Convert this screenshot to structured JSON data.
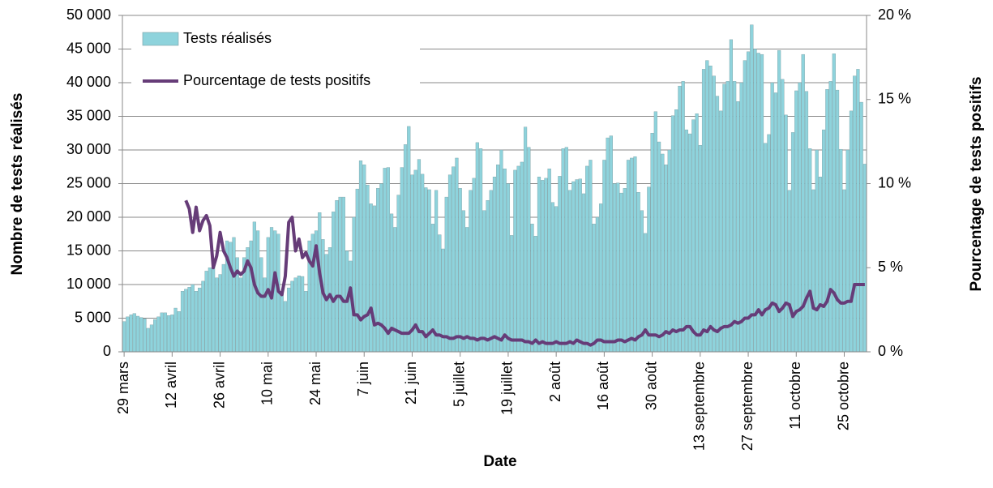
{
  "chart_data": {
    "type": "bar",
    "xlabel": "Date",
    "ylabel": "Nombre de tests réalisés",
    "y2label": "Pourcentage de tests positifs",
    "categories": [
      "29 mars",
      null,
      null,
      null,
      null,
      null,
      null,
      null,
      null,
      null,
      null,
      null,
      null,
      null,
      "12 avril",
      null,
      null,
      null,
      null,
      null,
      null,
      null,
      null,
      null,
      null,
      null,
      null,
      null,
      "26 avril",
      null,
      null,
      null,
      null,
      null,
      null,
      null,
      null,
      null,
      null,
      null,
      null,
      null,
      "10 mai",
      null,
      null,
      null,
      null,
      null,
      null,
      null,
      null,
      null,
      null,
      null,
      null,
      null,
      "24 mai",
      null,
      null,
      null,
      null,
      null,
      null,
      null,
      null,
      null,
      null,
      null,
      null,
      null,
      "7 juin",
      null,
      null,
      null,
      null,
      null,
      null,
      null,
      null,
      null,
      null,
      null,
      null,
      null,
      "21 juin",
      null,
      null,
      null,
      null,
      null,
      null,
      null,
      null,
      null,
      null,
      null,
      null,
      null,
      "5 juillet",
      null,
      null,
      null,
      null,
      null,
      null,
      null,
      null,
      null,
      null,
      null,
      null,
      null,
      "19 juillet",
      null,
      null,
      null,
      null,
      null,
      null,
      null,
      null,
      null,
      null,
      null,
      null,
      null,
      "2 août",
      null,
      null,
      null,
      null,
      null,
      null,
      null,
      null,
      null,
      null,
      null,
      null,
      null,
      "16 août",
      null,
      null,
      null,
      null,
      null,
      null,
      null,
      null,
      null,
      null,
      null,
      null,
      null,
      "30 août",
      null,
      null,
      null,
      null,
      null,
      null,
      null,
      null,
      null,
      null,
      null,
      null,
      null,
      "13 septembre",
      null,
      null,
      null,
      null,
      null,
      null,
      null,
      null,
      null,
      null,
      null,
      null,
      null,
      "27 septembre",
      null,
      null,
      null,
      null,
      null,
      null,
      null,
      null,
      null,
      null,
      null,
      null,
      null,
      "11 octobre",
      null,
      null,
      null,
      null,
      null,
      null,
      null,
      null,
      null,
      null,
      null,
      null,
      null,
      "25 octobre",
      null,
      null,
      null,
      null,
      null,
      null
    ],
    "series": [
      {
        "name": "Tests réalisés",
        "type": "bar",
        "color": "#8ed3dc",
        "values": [
          4500,
          5200,
          5500,
          5700,
          5300,
          5100,
          4900,
          3500,
          4000,
          4800,
          5200,
          5800,
          5800,
          5400,
          5500,
          6500,
          6000,
          9000,
          9300,
          9600,
          10000,
          9000,
          9500,
          10500,
          12000,
          12500,
          12700,
          11000,
          11500,
          13000,
          16500,
          16300,
          17000,
          14000,
          11000,
          14000,
          15500,
          16500,
          19300,
          18000,
          14000,
          11000,
          17000,
          18500,
          18000,
          17500,
          9000,
          7500,
          9500,
          10500,
          11000,
          11300,
          11200,
          9000,
          16500,
          17500,
          18000,
          20700,
          16700,
          14500,
          15500,
          20800,
          22500,
          23000,
          23000,
          15000,
          13500,
          20000,
          24200,
          28400,
          27800,
          24800,
          22000,
          21700,
          24300,
          25000,
          27300,
          27400,
          20500,
          18500,
          23300,
          27400,
          30800,
          33500,
          26300,
          27000,
          28600,
          26400,
          24400,
          24100,
          19000,
          24000,
          17400,
          15300,
          23000,
          26300,
          27500,
          28800,
          24300,
          21000,
          18500,
          24000,
          25800,
          31100,
          30200,
          21000,
          22500,
          24000,
          26000,
          27800,
          30000,
          27200,
          25000,
          17300,
          27000,
          27600,
          28200,
          33400,
          30400,
          19000,
          17200,
          26000,
          25500,
          25800,
          27200,
          22200,
          21600,
          26100,
          30200,
          30400,
          24000,
          25300,
          25600,
          25700,
          23500,
          27600,
          28500,
          19000,
          20000,
          22000,
          28500,
          31800,
          32100,
          25000,
          25100,
          23600,
          24300,
          28500,
          28800,
          29000,
          23700,
          21000,
          17600,
          24500,
          32500,
          35700,
          31200,
          29400,
          27800,
          30000,
          35100,
          36000,
          39500,
          40200,
          33000,
          32400,
          34500,
          35400,
          30700,
          42000,
          43300,
          42500,
          41000,
          38000,
          35800,
          39800,
          40200,
          46400,
          40200,
          37200,
          40000,
          43300,
          44600,
          48600,
          45000,
          44400,
          44200,
          31000,
          32300,
          40000,
          38500,
          44800,
          40500,
          35200,
          24000,
          32600,
          38800,
          40000,
          44200,
          38700,
          30200,
          24100,
          30000,
          26000,
          33000,
          39000,
          40200,
          44300,
          38900,
          30100,
          24100,
          30000,
          35800,
          41000,
          42000,
          37100,
          27900
        ]
      },
      {
        "name": "Pourcentage de tests positifs",
        "type": "line",
        "axis": "y2",
        "color": "#663c78",
        "values": [
          null,
          null,
          null,
          null,
          null,
          null,
          null,
          null,
          null,
          null,
          null,
          null,
          null,
          null,
          null,
          null,
          null,
          null,
          9.0,
          8.5,
          7.1,
          8.6,
          7.2,
          7.8,
          8.1,
          7.5,
          5.0,
          5.7,
          7.1,
          6.0,
          5.6,
          5.0,
          4.5,
          4.8,
          4.6,
          4.8,
          5.4,
          5.0,
          4.0,
          3.5,
          3.3,
          3.3,
          3.7,
          3.2,
          4.7,
          3.6,
          3.4,
          4.5,
          7.7,
          8.0,
          6.0,
          6.7,
          5.6,
          5.9,
          5.4,
          5.1,
          6.3,
          4.7,
          3.5,
          3.1,
          3.4,
          3.0,
          3.3,
          3.3,
          3.0,
          3.0,
          3.8,
          2.2,
          2.2,
          1.9,
          2.1,
          2.2,
          2.6,
          1.6,
          1.7,
          1.6,
          1.4,
          1.1,
          1.4,
          1.3,
          1.2,
          1.1,
          1.1,
          1.1,
          1.3,
          1.6,
          1.2,
          1.2,
          0.9,
          1.1,
          1.3,
          1.0,
          1.0,
          0.9,
          0.9,
          0.8,
          0.8,
          0.9,
          0.9,
          0.8,
          0.9,
          0.8,
          0.8,
          0.7,
          0.8,
          0.8,
          0.7,
          0.8,
          0.9,
          0.8,
          0.7,
          1.0,
          0.8,
          0.7,
          0.7,
          0.7,
          0.7,
          0.6,
          0.6,
          0.5,
          0.7,
          0.5,
          0.6,
          0.5,
          0.5,
          0.5,
          0.6,
          0.5,
          0.5,
          0.5,
          0.6,
          0.5,
          0.7,
          0.6,
          0.5,
          0.5,
          0.4,
          0.5,
          0.7,
          0.7,
          0.6,
          0.6,
          0.6,
          0.6,
          0.7,
          0.7,
          0.6,
          0.7,
          0.8,
          0.7,
          0.9,
          1.0,
          1.3,
          1.0,
          1.0,
          1.0,
          0.9,
          1.0,
          1.2,
          1.1,
          1.3,
          1.2,
          1.3,
          1.3,
          1.5,
          1.5,
          1.2,
          1.0,
          1.0,
          1.3,
          1.2,
          1.5,
          1.3,
          1.2,
          1.4,
          1.5,
          1.5,
          1.6,
          1.8,
          1.7,
          1.8,
          2.0,
          2.0,
          2.2,
          2.2,
          2.5,
          2.2,
          2.5,
          2.6,
          2.9,
          2.8,
          2.4,
          2.6,
          2.9,
          2.8,
          2.1,
          2.4,
          2.5,
          2.7,
          3.2,
          3.6,
          2.6,
          2.5,
          2.8,
          2.7,
          3.0,
          3.7,
          3.5,
          3.1,
          2.9,
          2.9,
          3.0,
          3.0,
          4.0,
          4.0,
          4.0,
          4.0
        ]
      }
    ],
    "ylim": [
      0,
      50000
    ],
    "yticks": [
      {
        "value": 0,
        "label": "0"
      },
      {
        "value": 5000,
        "label": "5 000"
      },
      {
        "value": 10000,
        "label": "10 000"
      },
      {
        "value": 15000,
        "label": "15 000"
      },
      {
        "value": 20000,
        "label": "20 000"
      },
      {
        "value": 25000,
        "label": "25 000"
      },
      {
        "value": 30000,
        "label": "30 000"
      },
      {
        "value": 35000,
        "label": "35 000"
      },
      {
        "value": 40000,
        "label": "40 000"
      },
      {
        "value": 45000,
        "label": "45 000"
      },
      {
        "value": 50000,
        "label": "50 000"
      }
    ],
    "y2lim": [
      0,
      20
    ],
    "y2ticks": [
      {
        "value": 0,
        "label": "0 %"
      },
      {
        "value": 5,
        "label": "5 %"
      },
      {
        "value": 10,
        "label": "10 %"
      },
      {
        "value": 15,
        "label": "15 %"
      },
      {
        "value": 20,
        "label": "20 %"
      }
    ],
    "grid": true,
    "legend": "top-left"
  }
}
